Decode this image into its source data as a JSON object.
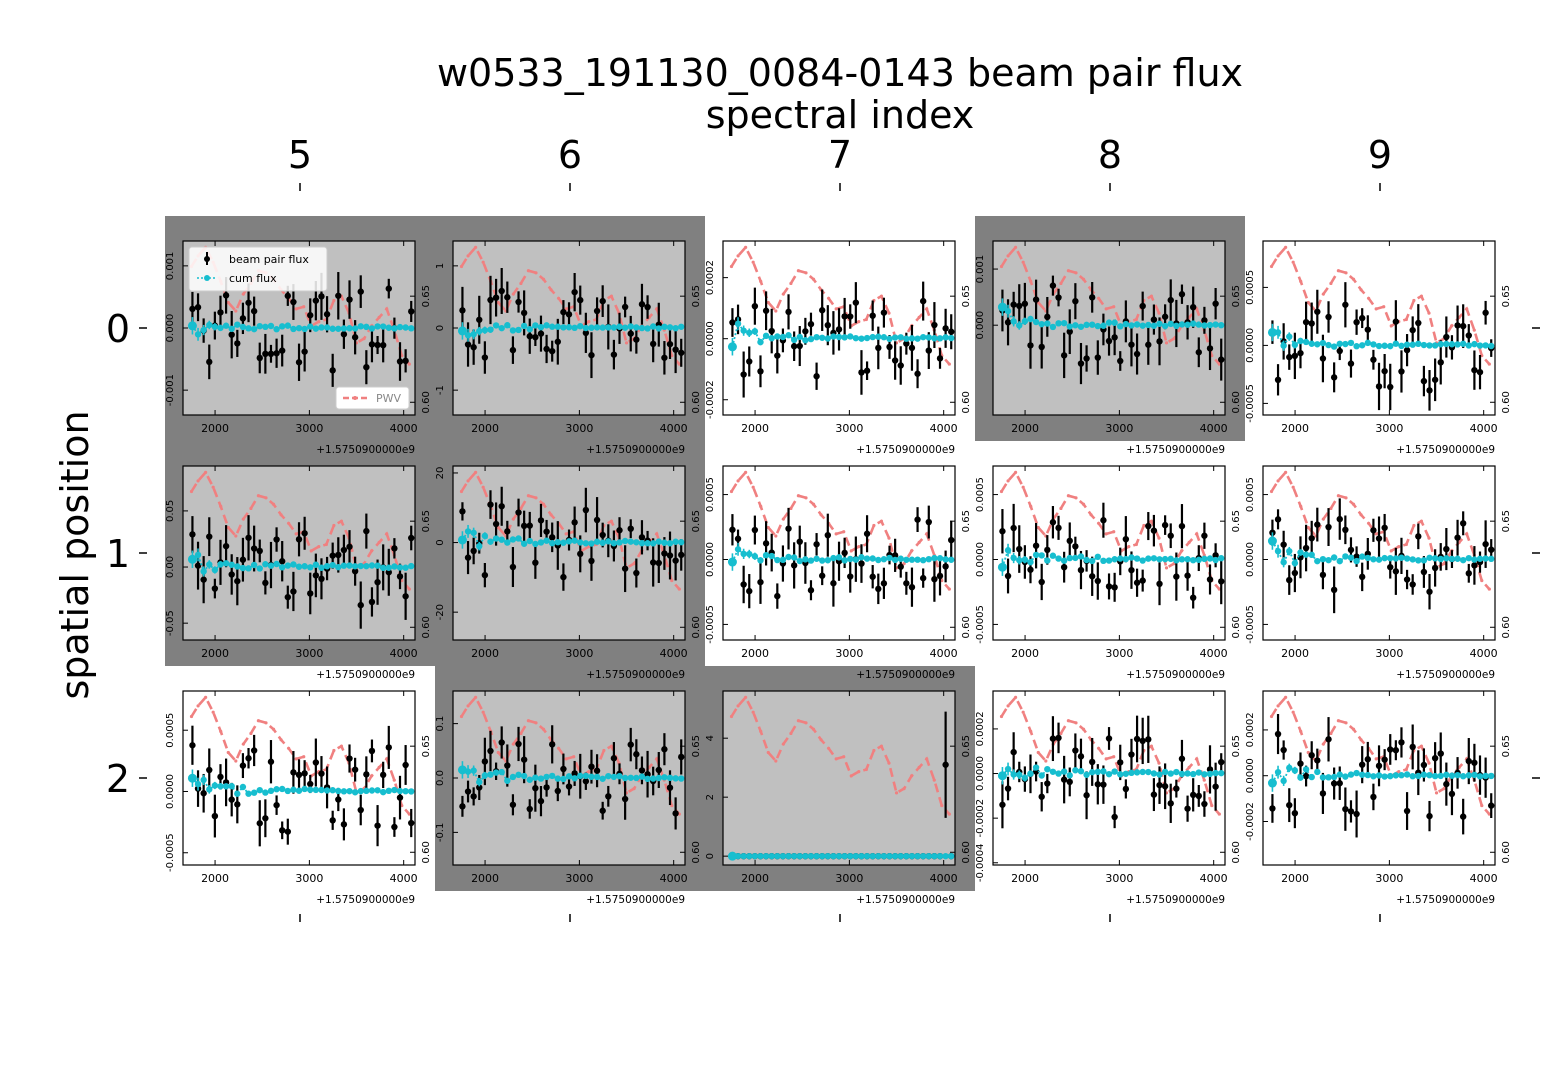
{
  "figure": {
    "title_line1": "w0533_191130_0084-0143 beam pair flux",
    "title_line2": "spectral index",
    "ylabel": "spatial position",
    "col_labels": [
      "5",
      "6",
      "7",
      "8",
      "9"
    ],
    "row_labels": [
      "0",
      "1",
      "2"
    ],
    "legend": {
      "beam": "beam pair flux",
      "cum": "cum flux",
      "pwv": "PWV"
    },
    "offset_label": "+1.5750900000e9",
    "x_ticks": [
      2000,
      3000,
      4000
    ],
    "x_range": [
      1660,
      4120
    ],
    "pwv_ticks": [
      "0.60",
      "0.65"
    ],
    "colors": {
      "beam": "#000000",
      "cum": "#17becf",
      "pwv": "#f08080",
      "flagged_bg": "#808080",
      "flagged_axes": "#c0c0c0"
    }
  },
  "chart_data": [
    {
      "row": 0,
      "col": 0,
      "flagged": true,
      "ylim": [
        -0.0014,
        0.0014
      ],
      "yticks": [
        "-0.001",
        "0.000",
        "0.001"
      ],
      "yticks_v": [
        -0.001,
        0,
        0.001
      ]
    },
    {
      "row": 0,
      "col": 1,
      "flagged": true,
      "ylim": [
        -1.4,
        1.4
      ],
      "yticks": [
        "-1",
        "0",
        "1"
      ],
      "yticks_v": [
        -1,
        0,
        1
      ]
    },
    {
      "row": 0,
      "col": 2,
      "flagged": false,
      "ylim": [
        -0.00025,
        0.00032
      ],
      "yticks": [
        "-0.0002",
        "0.0000",
        "0.0002"
      ],
      "yticks_v": [
        -0.0002,
        0,
        0.0002
      ]
    },
    {
      "row": 0,
      "col": 3,
      "flagged": true,
      "ylim": [
        -0.0016,
        0.0015
      ],
      "yticks": [
        "0.000",
        "0.001"
      ],
      "yticks_v": [
        0,
        0.001
      ]
    },
    {
      "row": 0,
      "col": 4,
      "flagged": false,
      "ylim": [
        -0.0006,
        0.0009
      ],
      "yticks": [
        "-0.0005",
        "0.0000",
        "0.0005"
      ],
      "yticks_v": [
        -0.0005,
        0,
        0.0005
      ]
    },
    {
      "row": 1,
      "col": 0,
      "flagged": true,
      "ylim": [
        -0.065,
        0.09
      ],
      "yticks": [
        "-0.05",
        "0.00",
        "0.05"
      ],
      "yticks_v": [
        -0.05,
        0,
        0.05
      ]
    },
    {
      "row": 1,
      "col": 1,
      "flagged": true,
      "ylim": [
        -28,
        22
      ],
      "yticks": [
        "-20",
        "0",
        "20"
      ],
      "yticks_v": [
        -20,
        0,
        20
      ]
    },
    {
      "row": 1,
      "col": 2,
      "flagged": false,
      "ylim": [
        -0.00062,
        0.00072
      ],
      "yticks": [
        "-0.0005",
        "0.0000",
        "0.0005"
      ],
      "yticks_v": [
        -0.0005,
        0,
        0.0005
      ]
    },
    {
      "row": 1,
      "col": 3,
      "flagged": false,
      "ylim": [
        -0.00062,
        0.00072
      ],
      "yticks": [
        "-0.0005",
        "0.0000",
        "0.0005"
      ],
      "yticks_v": [
        -0.0005,
        0,
        0.0005
      ]
    },
    {
      "row": 1,
      "col": 4,
      "flagged": false,
      "ylim": [
        -0.00062,
        0.00072
      ],
      "yticks": [
        "-0.0005",
        "0.0000",
        "0.0005"
      ],
      "yticks_v": [
        -0.0005,
        0,
        0.0005
      ]
    },
    {
      "row": 2,
      "col": 0,
      "flagged": false,
      "ylim": [
        -0.0006,
        0.00082
      ],
      "yticks": [
        "-0.0005",
        "0.0000",
        "0.0005"
      ],
      "yticks_v": [
        -0.0005,
        0,
        0.0005
      ]
    },
    {
      "row": 2,
      "col": 1,
      "flagged": true,
      "ylim": [
        -0.16,
        0.16
      ],
      "yticks": [
        "-0.1",
        "0.0",
        "0.1"
      ],
      "yticks_v": [
        -0.1,
        0,
        0.1
      ]
    },
    {
      "row": 2,
      "col": 2,
      "flagged": true,
      "ylim": [
        -0.3,
        5.6
      ],
      "yticks": [
        "0",
        "2",
        "4"
      ],
      "yticks_v": [
        0,
        2,
        4
      ]
    },
    {
      "row": 2,
      "col": 3,
      "flagged": false,
      "ylim": [
        -0.00041,
        0.00037
      ],
      "yticks": [
        "-0.0004",
        "-0.0002",
        "0.0000",
        "0.0002"
      ],
      "yticks_v": [
        -0.0004,
        -0.0002,
        0,
        0.0002
      ]
    },
    {
      "row": 2,
      "col": 4,
      "flagged": false,
      "ylim": [
        -0.00039,
        0.00037
      ],
      "yticks": [
        "-0.0002",
        "0.0000",
        "0.0002"
      ],
      "yticks_v": [
        -0.0002,
        0,
        0.0002
      ]
    }
  ],
  "pwv_series": {
    "name": "PWV",
    "x": [
      1750,
      1820,
      1900,
      1980,
      2060,
      2140,
      2220,
      2300,
      2380,
      2460,
      2540,
      2620,
      2700,
      2780,
      2860,
      2940,
      3020,
      3100,
      3180,
      3260,
      3340,
      3420,
      3500,
      3580,
      3660,
      3740,
      3820,
      3900,
      3980,
      4060
    ],
    "y": [
      0.664,
      0.669,
      0.673,
      0.666,
      0.657,
      0.647,
      0.643,
      0.651,
      0.656,
      0.662,
      0.661,
      0.658,
      0.653,
      0.649,
      0.644,
      0.645,
      0.636,
      0.638,
      0.639,
      0.648,
      0.65,
      0.642,
      0.628,
      0.63,
      0.636,
      0.64,
      0.644,
      0.634,
      0.622,
      0.618
    ],
    "ylim": [
      0.594,
      0.676
    ]
  }
}
